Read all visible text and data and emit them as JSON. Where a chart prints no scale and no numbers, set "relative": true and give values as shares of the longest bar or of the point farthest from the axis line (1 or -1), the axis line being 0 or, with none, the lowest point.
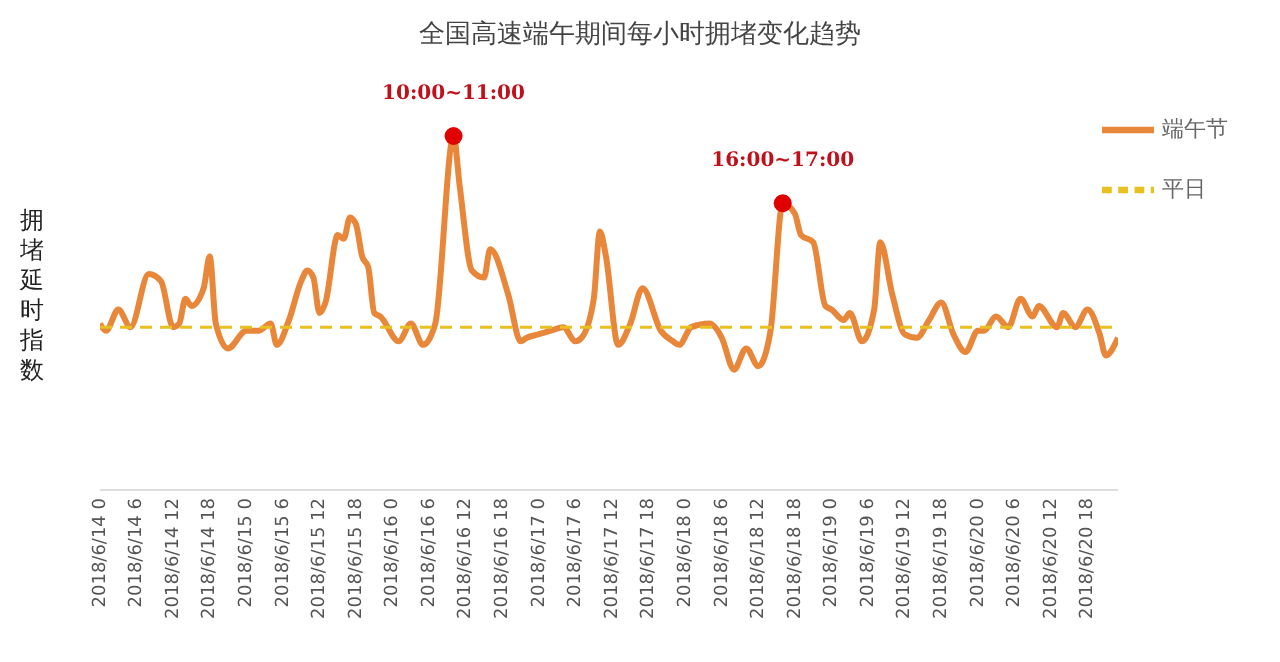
{
  "chart_data": {
    "type": "line",
    "title": "全国高速端午期间每小时拥堵变化趋势",
    "ylabel": "拥堵延时指数",
    "relative": true,
    "legend": "top right",
    "grid": false,
    "marker": "none",
    "xlim": [
      "2018-06-14T00:00",
      "2018-06-20T23:00"
    ],
    "xticks": [
      {
        "value": "2018-06-14T00:00",
        "label": "2018/6/14 0"
      },
      {
        "value": "2018-06-14T06:00",
        "label": "2018/6/14 6"
      },
      {
        "value": "2018-06-14T12:00",
        "label": "2018/6/14 12"
      },
      {
        "value": "2018-06-14T18:00",
        "label": "2018/6/14 18"
      },
      {
        "value": "2018-06-15T00:00",
        "label": "2018/6/15 0"
      },
      {
        "value": "2018-06-15T06:00",
        "label": "2018/6/15 6"
      },
      {
        "value": "2018-06-15T12:00",
        "label": "2018/6/15 12"
      },
      {
        "value": "2018-06-15T18:00",
        "label": "2018/6/15 18"
      },
      {
        "value": "2018-06-16T00:00",
        "label": "2018/6/16 0"
      },
      {
        "value": "2018-06-16T06:00",
        "label": "2018/6/16 6"
      },
      {
        "value": "2018-06-16T12:00",
        "label": "2018/6/16 12"
      },
      {
        "value": "2018-06-16T18:00",
        "label": "2018/6/16 18"
      },
      {
        "value": "2018-06-17T00:00",
        "label": "2018/6/17 0"
      },
      {
        "value": "2018-06-17T06:00",
        "label": "2018/6/17 6"
      },
      {
        "value": "2018-06-17T12:00",
        "label": "2018/6/17 12"
      },
      {
        "value": "2018-06-17T18:00",
        "label": "2018/6/17 18"
      },
      {
        "value": "2018-06-18T00:00",
        "label": "2018/6/18 0"
      },
      {
        "value": "2018-06-18T06:00",
        "label": "2018/6/18 6"
      },
      {
        "value": "2018-06-18T12:00",
        "label": "2018/6/18 12"
      },
      {
        "value": "2018-06-18T18:00",
        "label": "2018/6/18 18"
      },
      {
        "value": "2018-06-19T00:00",
        "label": "2018/6/19 0"
      },
      {
        "value": "2018-06-19T06:00",
        "label": "2018/6/19 6"
      },
      {
        "value": "2018-06-19T12:00",
        "label": "2018/6/19 12"
      },
      {
        "value": "2018-06-19T18:00",
        "label": "2018/6/19 18"
      },
      {
        "value": "2018-06-20T00:00",
        "label": "2018/6/20 0"
      },
      {
        "value": "2018-06-20T06:00",
        "label": "2018/6/20 6"
      },
      {
        "value": "2018-06-20T12:00",
        "label": "2018/6/20 12"
      },
      {
        "value": "2018-06-20T18:00",
        "label": "2018/6/20 18"
      }
    ],
    "series": [
      {
        "name": "端午节",
        "color": "#e8873a",
        "line_style": "solid",
        "x": [
          "2018-06-14T00:00",
          "2018-06-14T01:00",
          "2018-06-14T03:00",
          "2018-06-14T05:00",
          "2018-06-14T08:00",
          "2018-06-14T10:00",
          "2018-06-14T12:00",
          "2018-06-14T13:00",
          "2018-06-14T14:00",
          "2018-06-14T15:00",
          "2018-06-14T17:00",
          "2018-06-14T18:00",
          "2018-06-14T19:00",
          "2018-06-14T21:00",
          "2018-06-15T00:00",
          "2018-06-15T02:00",
          "2018-06-15T04:00",
          "2018-06-15T05:00",
          "2018-06-15T07:00",
          "2018-06-15T09:00",
          "2018-06-15T10:00",
          "2018-06-15T11:00",
          "2018-06-15T12:00",
          "2018-06-15T13:00",
          "2018-06-15T15:00",
          "2018-06-15T16:00",
          "2018-06-15T17:00",
          "2018-06-15T18:00",
          "2018-06-15T19:00",
          "2018-06-15T20:00",
          "2018-06-15T21:00",
          "2018-06-15T22:00",
          "2018-06-16T01:00",
          "2018-06-16T03:00",
          "2018-06-16T05:00",
          "2018-06-16T07:00",
          "2018-06-16T10:00",
          "2018-06-16T11:00",
          "2018-06-16T13:00",
          "2018-06-16T15:00",
          "2018-06-16T16:00",
          "2018-06-16T19:00",
          "2018-06-16T21:00",
          "2018-06-16T22:00",
          "2018-06-17T00:00",
          "2018-06-17T02:00",
          "2018-06-17T04:00",
          "2018-06-17T06:00",
          "2018-06-17T07:00",
          "2018-06-17T09:00",
          "2018-06-17T10:00",
          "2018-06-17T11:00",
          "2018-06-17T13:00",
          "2018-06-17T15:00",
          "2018-06-17T17:00",
          "2018-06-17T20:00",
          "2018-06-17T22:00",
          "2018-06-17T23:00",
          "2018-06-18T01:00",
          "2018-06-18T04:00",
          "2018-06-18T06:00",
          "2018-06-18T08:00",
          "2018-06-18T10:00",
          "2018-06-18T12:00",
          "2018-06-18T14:00",
          "2018-06-18T16:00",
          "2018-06-18T18:00",
          "2018-06-18T19:00",
          "2018-06-18T21:00",
          "2018-06-18T23:00",
          "2018-06-19T00:00",
          "2018-06-19T02:00",
          "2018-06-19T03:00",
          "2018-06-19T05:00",
          "2018-06-19T07:00",
          "2018-06-19T08:00",
          "2018-06-19T10:00",
          "2018-06-19T12:00",
          "2018-06-19T14:00",
          "2018-06-19T16:00",
          "2018-06-19T18:00",
          "2018-06-19T20:00",
          "2018-06-19T22:00",
          "2018-06-20T00:00",
          "2018-06-20T01:00",
          "2018-06-20T03:00",
          "2018-06-20T05:00",
          "2018-06-20T07:00",
          "2018-06-20T09:00",
          "2018-06-20T10:00",
          "2018-06-20T13:00",
          "2018-06-20T14:00",
          "2018-06-20T16:00",
          "2018-06-20T18:00",
          "2018-06-20T20:00",
          "2018-06-20T21:00",
          "2018-06-20T23:00"
        ],
        "values": [
          0.47,
          0.45,
          0.51,
          0.46,
          0.61,
          0.59,
          0.46,
          0.47,
          0.54,
          0.52,
          0.57,
          0.66,
          0.47,
          0.4,
          0.45,
          0.45,
          0.47,
          0.41,
          0.48,
          0.59,
          0.62,
          0.6,
          0.5,
          0.53,
          0.72,
          0.71,
          0.77,
          0.75,
          0.66,
          0.63,
          0.5,
          0.49,
          0.42,
          0.47,
          0.41,
          0.47,
          1.0,
          0.86,
          0.62,
          0.6,
          0.68,
          0.55,
          0.42,
          0.43,
          0.44,
          0.45,
          0.46,
          0.42,
          0.43,
          0.54,
          0.73,
          0.66,
          0.41,
          0.47,
          0.57,
          0.45,
          0.42,
          0.41,
          0.46,
          0.47,
          0.43,
          0.34,
          0.4,
          0.35,
          0.45,
          0.81,
          0.78,
          0.72,
          0.7,
          0.52,
          0.51,
          0.48,
          0.5,
          0.42,
          0.51,
          0.7,
          0.55,
          0.44,
          0.43,
          0.48,
          0.53,
          0.44,
          0.39,
          0.45,
          0.45,
          0.49,
          0.46,
          0.54,
          0.49,
          0.52,
          0.46,
          0.5,
          0.46,
          0.51,
          0.44,
          0.38,
          0.43
        ]
      },
      {
        "name": "平日",
        "color": "#e8c020",
        "line_style": "dashed",
        "x": [
          "2018-06-14T00:00",
          "2018-06-20T23:00"
        ],
        "values": [
          0.46,
          0.46
        ]
      }
    ],
    "annotations": [
      {
        "text": "10:00~11:00",
        "x": "2018-06-16T10:00",
        "y": 1.0
      },
      {
        "text": "16:00~17:00",
        "x": "2018-06-18T16:00",
        "y": 0.81
      }
    ]
  }
}
